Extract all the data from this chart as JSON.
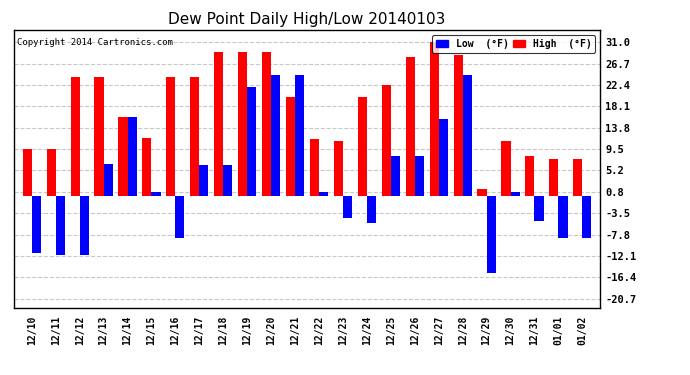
{
  "title": "Dew Point Daily High/Low 20140103",
  "copyright": "Copyright 2014 Cartronics.com",
  "legend_low": "Low  (°F)",
  "legend_high": "High  (°F)",
  "low_color": "#0000ff",
  "high_color": "#ff0000",
  "bg_color": "#ffffff",
  "grid_color": "#c8c8c8",
  "yticks": [
    -20.7,
    -16.4,
    -12.1,
    -7.8,
    -3.5,
    0.8,
    5.2,
    9.5,
    13.8,
    18.1,
    22.4,
    26.7,
    31.0
  ],
  "dates": [
    "12/10",
    "12/11",
    "12/12",
    "12/13",
    "12/14",
    "12/15",
    "12/16",
    "12/17",
    "12/18",
    "12/19",
    "12/20",
    "12/21",
    "12/22",
    "12/23",
    "12/24",
    "12/25",
    "12/26",
    "12/27",
    "12/28",
    "12/29",
    "12/30",
    "12/31",
    "01/01",
    "01/02"
  ],
  "highs": [
    9.5,
    9.5,
    24.0,
    24.0,
    16.0,
    11.8,
    24.0,
    24.0,
    29.0,
    29.0,
    29.0,
    20.0,
    11.5,
    11.0,
    20.0,
    22.5,
    28.0,
    31.0,
    28.5,
    1.5,
    11.0,
    8.0,
    7.5,
    7.5
  ],
  "lows": [
    -11.5,
    -12.0,
    -12.0,
    6.5,
    16.0,
    0.8,
    -8.5,
    6.3,
    6.3,
    22.0,
    24.5,
    24.5,
    0.8,
    -4.5,
    -5.5,
    8.0,
    8.0,
    15.5,
    24.5,
    -15.5,
    0.8,
    -5.0,
    -8.5,
    -8.5
  ]
}
